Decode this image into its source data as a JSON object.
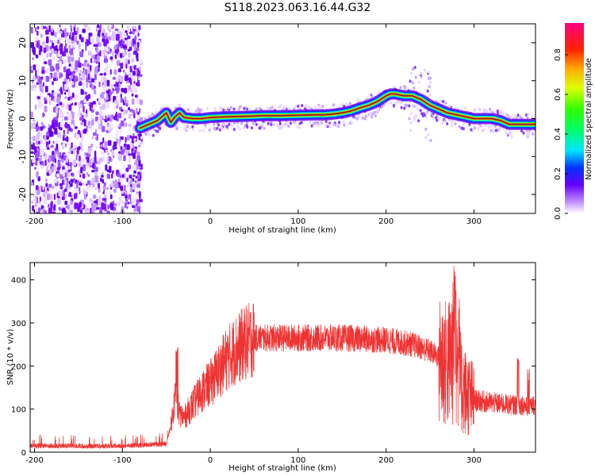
{
  "title": "S118.2023.063.16.44.G32",
  "chart_data": [
    {
      "type": "heatmap",
      "xlabel": "Height of straight line (km)",
      "ylabel": "Frequency (Hz)",
      "xlim": [
        -205,
        370
      ],
      "ylim": [
        -25,
        25
      ],
      "xticks": [
        -200,
        -100,
        0,
        100,
        200,
        300
      ],
      "yticks": [
        -20,
        -10,
        0,
        10,
        20
      ],
      "colorbar": {
        "label": "Normalized spectral amplitude",
        "range": [
          0.0,
          0.96
        ],
        "ticks": [
          0.0,
          0.2,
          0.4,
          0.6,
          0.8
        ]
      },
      "noise_region_x": [
        -205,
        -80
      ],
      "ridge": {
        "x": [
          -80,
          -70,
          -60,
          -50,
          -45,
          -40,
          -35,
          -30,
          -20,
          -10,
          0,
          20,
          40,
          60,
          80,
          100,
          120,
          130,
          140,
          150,
          160,
          170,
          180,
          190,
          200,
          205,
          210,
          220,
          230,
          240,
          250,
          260,
          270,
          280,
          290,
          300,
          320,
          330,
          340,
          350,
          360,
          370
        ],
        "y": [
          -2.5,
          -1.5,
          -0.5,
          1.5,
          -1.0,
          0.5,
          1.5,
          0.3,
          0.0,
          0.0,
          0.3,
          0.5,
          0.6,
          0.8,
          0.8,
          0.9,
          1.0,
          1.0,
          1.2,
          1.5,
          2.0,
          2.8,
          3.5,
          4.5,
          6.0,
          6.5,
          6.5,
          6.0,
          6.0,
          5.0,
          3.5,
          2.5,
          1.5,
          1.0,
          0.5,
          0.0,
          0.0,
          -0.5,
          -1.5,
          -1.5,
          -1.5,
          -1.5
        ]
      }
    },
    {
      "type": "line",
      "xlabel": "Height of straight line (km)",
      "ylabel": "SNR (10 * v/v)",
      "xlim": [
        -205,
        370
      ],
      "ylim": [
        0,
        440
      ],
      "xticks": [
        -200,
        -100,
        0,
        100,
        200,
        300
      ],
      "yticks": [
        0,
        100,
        200,
        300,
        400
      ],
      "color": "#ee3333",
      "envelope": {
        "x": [
          -205,
          -100,
          -50,
          -45,
          -40,
          -35,
          -30,
          -20,
          -10,
          0,
          10,
          20,
          30,
          50,
          100,
          150,
          200,
          230,
          250,
          260,
          270,
          275,
          280,
          285,
          290,
          300,
          320,
          340,
          355,
          360,
          370
        ],
        "y": [
          15,
          15,
          20,
          60,
          130,
          90,
          80,
          110,
          140,
          160,
          190,
          220,
          240,
          265,
          265,
          265,
          260,
          250,
          235,
          220,
          200,
          230,
          220,
          160,
          140,
          120,
          115,
          110,
          110,
          105,
          110
        ]
      },
      "spikes": [
        {
          "x": -38,
          "y": 245
        },
        {
          "x": 278,
          "y": 435
        },
        {
          "x": 283,
          "y": 360
        },
        {
          "x": 350,
          "y": 225
        },
        {
          "x": 362,
          "y": 195
        }
      ]
    }
  ]
}
